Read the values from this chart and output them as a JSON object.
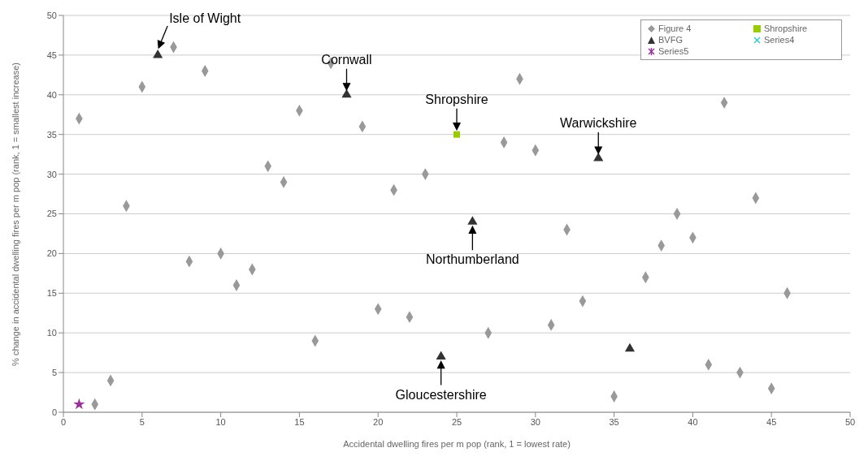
{
  "chart_data": {
    "type": "scatter",
    "xlabel": "Accidental dwelling fires per m pop (rank, 1 = lowest rate)",
    "ylabel": "% change in accidental dwelling fires per m pop (rank, 1 = smallest increase)",
    "xlim": [
      0,
      50
    ],
    "xticks": [
      0,
      5,
      10,
      15,
      20,
      25,
      30,
      35,
      40,
      45,
      50
    ],
    "ylim": [
      0,
      50
    ],
    "yticks": [
      0,
      5,
      10,
      15,
      20,
      25,
      30,
      35,
      40,
      45,
      50
    ],
    "grid": "y",
    "legend": "top right",
    "series": [
      {
        "name": "Figure 4",
        "color": "#999999",
        "marker": "diamond",
        "x": [
          1,
          2,
          3,
          4,
          5,
          7,
          8,
          9,
          10,
          11,
          12,
          13,
          14,
          15,
          16,
          17,
          19,
          20,
          21,
          22,
          23,
          27,
          28,
          29,
          30,
          31,
          32,
          33,
          35,
          37,
          38,
          39,
          40,
          41,
          42,
          43,
          44,
          45,
          46
        ],
        "values": [
          37,
          1,
          4,
          26,
          41,
          46,
          19,
          43,
          20,
          16,
          18,
          31,
          29,
          38,
          9,
          44,
          36,
          13,
          28,
          12,
          30,
          10,
          34,
          42,
          33,
          11,
          23,
          14,
          2,
          17,
          21,
          25,
          22,
          6,
          39,
          5,
          27,
          3,
          15
        ]
      },
      {
        "name": "Shropshire",
        "color": "#99cc00",
        "marker": "square",
        "x": [
          25
        ],
        "values": [
          35
        ]
      },
      {
        "name": "BVFG",
        "color": "#333333",
        "marker": "triangle",
        "x": [
          6,
          18,
          24,
          26,
          34,
          36
        ],
        "values": [
          45,
          40,
          7,
          24,
          32,
          8
        ]
      },
      {
        "name": "Series4",
        "color": "#33cccc",
        "marker": "cross"
      },
      {
        "name": "Series5",
        "color": "#993399",
        "marker": "star",
        "x": [
          1
        ],
        "values": [
          1
        ]
      }
    ],
    "annotations": [
      {
        "text": "Isle of Wight",
        "x": 6,
        "y": 45
      },
      {
        "text": "Cornwall",
        "x": 18,
        "y": 40
      },
      {
        "text": "Shropshire",
        "x": 25,
        "y": 35
      },
      {
        "text": "Warwickshire",
        "x": 34,
        "y": 32
      },
      {
        "text": "Northumberland",
        "x": 26,
        "y": 24
      },
      {
        "text": "Gloucestershire",
        "x": 24,
        "y": 7
      }
    ]
  }
}
